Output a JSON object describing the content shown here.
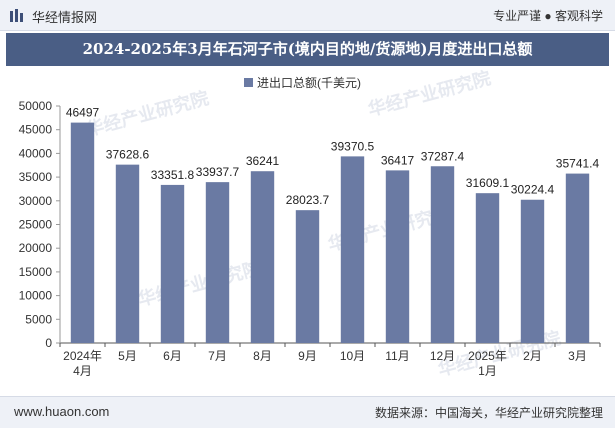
{
  "header": {
    "brand": "华经情报网",
    "tagline": "专业严谨 ● 客观科学"
  },
  "footer": {
    "site": "www.huaon.com",
    "source": "数据来源：中国海关，华经产业研究院整理"
  },
  "colors": {
    "bar": "#6a7aa3",
    "title_bg": "#4a5e85",
    "header_bg": "#eef1f7"
  },
  "watermark_text": "华经产业研究院",
  "chart_data": {
    "type": "bar",
    "title": "2024-2025年3月年石河子市(境内目的地/货源地)月度进出口总额",
    "legend": "进出口总额(千美元)",
    "legend_position": "top-center",
    "categories": [
      "2024年\n4月",
      "5月",
      "6月",
      "7月",
      "8月",
      "9月",
      "10月",
      "11月",
      "12月",
      "2025年\n1月",
      "2月",
      "3月"
    ],
    "values": [
      46497,
      37628.6,
      33351.8,
      33937.7,
      36241,
      28023.7,
      39370.5,
      36417,
      37287.4,
      31609.1,
      30224.4,
      35741.4
    ],
    "labels": [
      "46497",
      "37628.6",
      "33351.8",
      "33937.7",
      "36241",
      "28023.7",
      "39370.5",
      "36417",
      "37287.4",
      "31609.1",
      "30224.4",
      "35741.4"
    ],
    "yticks": [
      0,
      5000,
      10000,
      15000,
      20000,
      25000,
      30000,
      35000,
      40000,
      45000,
      50000
    ],
    "ylim": [
      0,
      50000
    ],
    "grid": false
  }
}
